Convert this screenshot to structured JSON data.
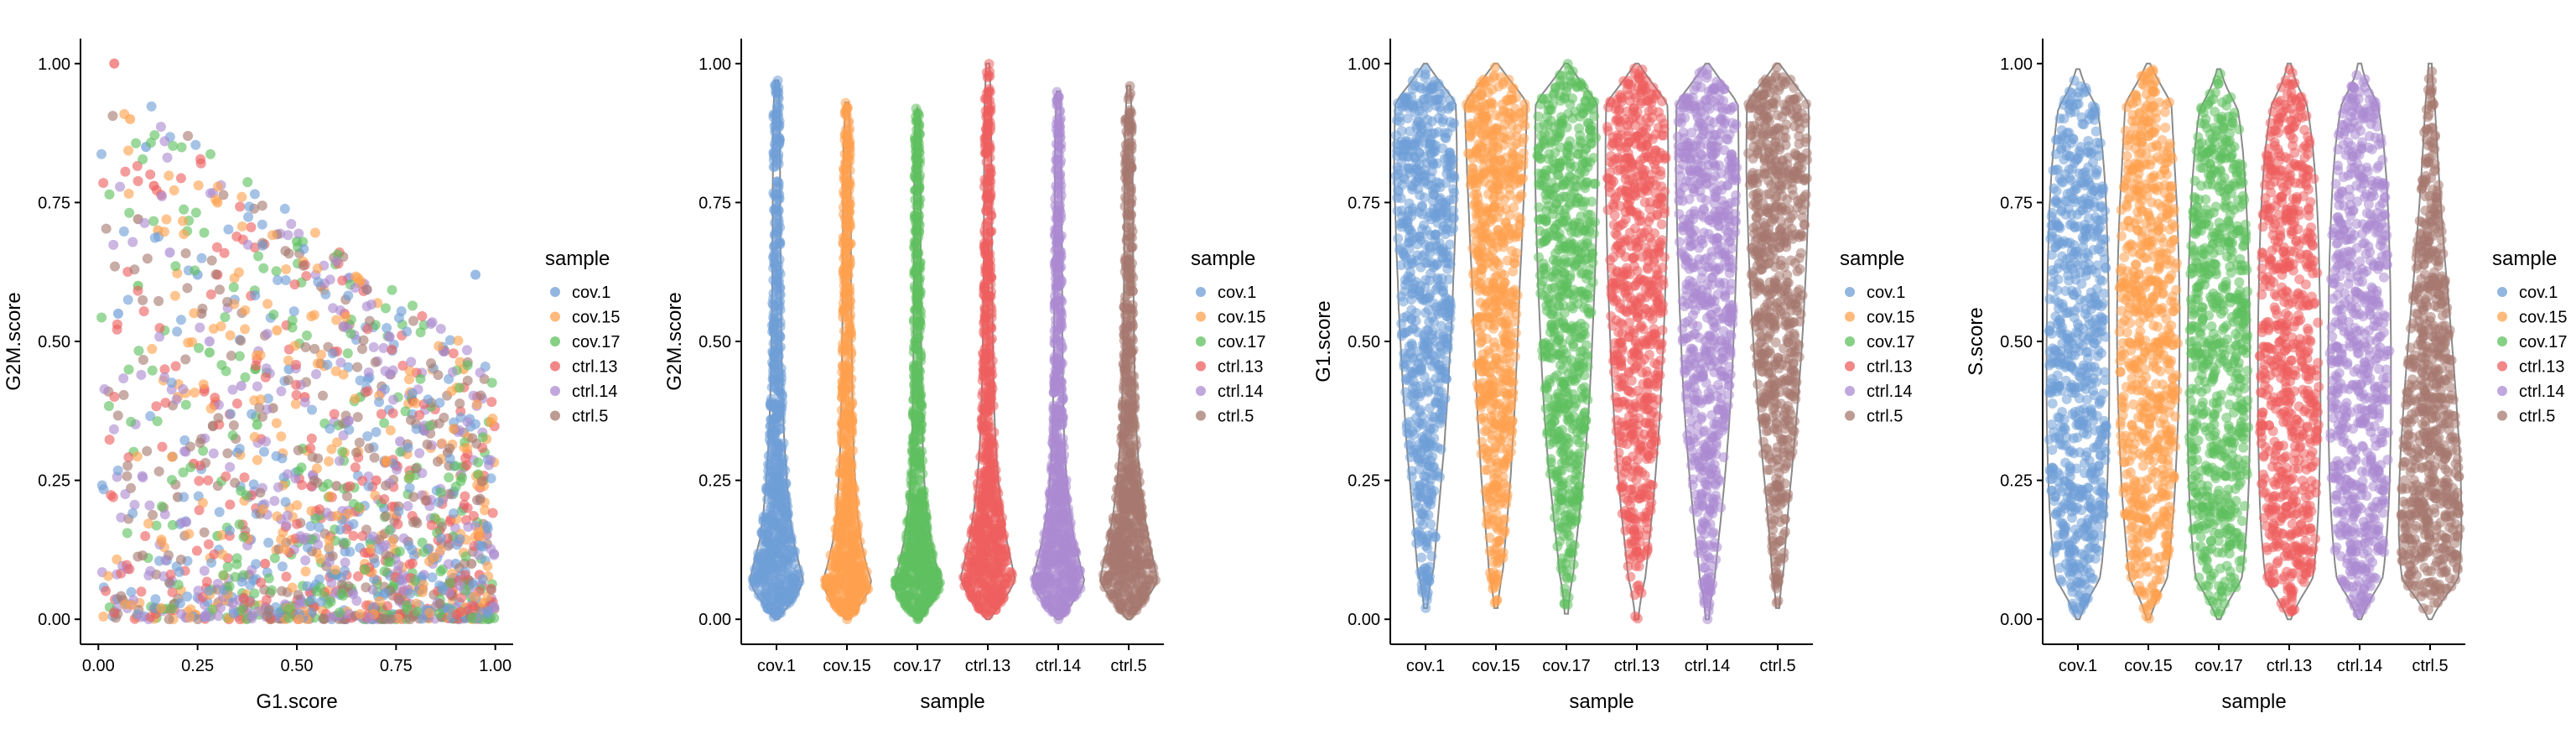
{
  "legend_title": "sample",
  "samples": [
    "cov.1",
    "cov.15",
    "cov.17",
    "ctrl.13",
    "ctrl.14",
    "ctrl.5"
  ],
  "colors": {
    "cov.1": "#6F9ED7",
    "cov.15": "#FFA14E",
    "cov.17": "#5EC05E",
    "ctrl.13": "#EE5F5F",
    "ctrl.14": "#AB8BD1",
    "ctrl.5": "#A6796F"
  },
  "chart_data": [
    {
      "type": "scatter",
      "xlabel": "G1.score",
      "ylabel": "G2M.score",
      "xlim": [
        0,
        1
      ],
      "ylim": [
        0,
        1
      ],
      "x_ticks": [
        "0.00",
        "0.25",
        "0.50",
        "0.75",
        "1.00"
      ],
      "y_ticks": [
        "0.00",
        "0.25",
        "0.50",
        "0.75",
        "1.00"
      ],
      "legend_title": "sample",
      "legend_entries": [
        "cov.1",
        "cov.15",
        "cov.17",
        "ctrl.13",
        "ctrl.14",
        "ctrl.5"
      ],
      "legend_position": "right",
      "grid": false,
      "series": [
        {
          "name": "cov.1",
          "points": [
            [
              0.12,
              0.85
            ],
            [
              0.25,
              0.62
            ],
            [
              0.48,
              0.45
            ],
            [
              0.72,
              0.2
            ],
            [
              0.9,
              0.1
            ],
            [
              0.35,
              0.3
            ],
            [
              0.6,
              0.08
            ],
            [
              0.82,
              0.34
            ],
            [
              0.05,
              0.55
            ],
            [
              0.95,
              0.62
            ]
          ]
        },
        {
          "name": "cov.15",
          "points": [
            [
              0.08,
              0.9
            ],
            [
              0.3,
              0.75
            ],
            [
              0.45,
              0.52
            ],
            [
              0.62,
              0.3
            ],
            [
              0.85,
              0.18
            ],
            [
              0.2,
              0.4
            ],
            [
              0.55,
              0.12
            ],
            [
              0.78,
              0.05
            ],
            [
              0.15,
              0.7
            ],
            [
              0.92,
              0.45
            ]
          ]
        },
        {
          "name": "cov.17",
          "points": [
            [
              0.1,
              0.6
            ],
            [
              0.28,
              0.48
            ],
            [
              0.4,
              0.35
            ],
            [
              0.58,
              0.22
            ],
            [
              0.75,
              0.12
            ],
            [
              0.88,
              0.06
            ],
            [
              0.5,
              0.68
            ],
            [
              0.3,
              0.15
            ],
            [
              0.66,
              0.4
            ],
            [
              0.97,
              0.25
            ]
          ]
        },
        {
          "name": "ctrl.13",
          "points": [
            [
              0.04,
              1.0
            ],
            [
              0.14,
              0.78
            ],
            [
              0.3,
              0.62
            ],
            [
              0.52,
              0.4
            ],
            [
              0.7,
              0.25
            ],
            [
              0.86,
              0.16
            ],
            [
              0.42,
              0.1
            ],
            [
              0.62,
              0.55
            ],
            [
              0.24,
              0.28
            ],
            [
              0.96,
              0.08
            ]
          ]
        },
        {
          "name": "ctrl.14",
          "points": [
            [
              0.18,
              0.66
            ],
            [
              0.36,
              0.42
            ],
            [
              0.54,
              0.26
            ],
            [
              0.7,
              0.14
            ],
            [
              0.82,
              0.08
            ],
            [
              0.92,
              0.2
            ],
            [
              0.46,
              0.18
            ],
            [
              0.64,
              0.05
            ],
            [
              0.28,
              0.5
            ],
            [
              0.76,
              0.32
            ]
          ]
        },
        {
          "name": "ctrl.5",
          "points": [
            [
              0.1,
              0.72
            ],
            [
              0.26,
              0.55
            ],
            [
              0.44,
              0.38
            ],
            [
              0.6,
              0.24
            ],
            [
              0.78,
              0.14
            ],
            [
              0.94,
              0.1
            ],
            [
              0.38,
              0.08
            ],
            [
              0.56,
              0.46
            ],
            [
              0.2,
              0.22
            ],
            [
              0.88,
              0.3
            ]
          ]
        }
      ]
    },
    {
      "type": "violin",
      "xlabel": "sample",
      "ylabel": "G2M.score",
      "ylim": [
        0,
        1
      ],
      "y_ticks": [
        "0.00",
        "0.25",
        "0.50",
        "0.75",
        "1.00"
      ],
      "categories": [
        "cov.1",
        "cov.15",
        "cov.17",
        "ctrl.13",
        "ctrl.14",
        "ctrl.5"
      ],
      "legend_title": "sample",
      "legend_entries": [
        "cov.1",
        "cov.15",
        "cov.17",
        "ctrl.13",
        "ctrl.14",
        "ctrl.5"
      ],
      "legend_position": "right",
      "series": [
        {
          "name": "cov.1",
          "min": 0.0,
          "max": 0.97,
          "median": 0.14,
          "density": [
            1.0,
            0.95,
            0.72,
            0.5,
            0.38,
            0.3,
            0.24,
            0.19,
            0.16,
            0.13,
            0.11,
            0.1,
            0.09,
            0.08,
            0.08,
            0.07,
            0.07,
            0.06,
            0.06,
            0.06,
            0.05
          ]
        },
        {
          "name": "cov.15",
          "min": 0.0,
          "max": 0.93,
          "median": 0.12,
          "density": [
            1.0,
            0.9,
            0.62,
            0.42,
            0.3,
            0.24,
            0.19,
            0.16,
            0.14,
            0.12,
            0.11,
            0.1,
            0.09,
            0.08,
            0.08,
            0.08,
            0.07,
            0.07,
            0.06,
            0.05,
            0.04
          ]
        },
        {
          "name": "cov.17",
          "min": 0.0,
          "max": 0.92,
          "median": 0.11,
          "density": [
            1.0,
            0.92,
            0.6,
            0.4,
            0.28,
            0.2,
            0.15,
            0.12,
            0.1,
            0.09,
            0.08,
            0.07,
            0.07,
            0.06,
            0.06,
            0.05,
            0.05,
            0.05,
            0.04,
            0.04,
            0.03
          ]
        },
        {
          "name": "ctrl.13",
          "min": 0.0,
          "max": 1.0,
          "median": 0.15,
          "density": [
            1.0,
            0.96,
            0.75,
            0.55,
            0.4,
            0.3,
            0.23,
            0.18,
            0.15,
            0.13,
            0.11,
            0.1,
            0.09,
            0.08,
            0.08,
            0.07,
            0.07,
            0.06,
            0.06,
            0.05,
            0.05
          ]
        },
        {
          "name": "ctrl.14",
          "min": 0.0,
          "max": 0.95,
          "median": 0.13,
          "density": [
            1.0,
            0.94,
            0.7,
            0.48,
            0.34,
            0.25,
            0.18,
            0.14,
            0.12,
            0.1,
            0.09,
            0.08,
            0.08,
            0.07,
            0.07,
            0.06,
            0.06,
            0.05,
            0.05,
            0.04,
            0.03
          ]
        },
        {
          "name": "ctrl.5",
          "min": 0.0,
          "max": 0.96,
          "median": 0.16,
          "density": [
            1.0,
            0.98,
            0.82,
            0.62,
            0.46,
            0.35,
            0.27,
            0.21,
            0.17,
            0.15,
            0.13,
            0.12,
            0.11,
            0.1,
            0.09,
            0.09,
            0.08,
            0.08,
            0.07,
            0.06,
            0.05
          ]
        }
      ]
    },
    {
      "type": "violin",
      "xlabel": "sample",
      "ylabel": "G1.score",
      "ylim": [
        0,
        1
      ],
      "y_ticks": [
        "0.00",
        "0.25",
        "0.50",
        "0.75",
        "1.00"
      ],
      "categories": [
        "cov.1",
        "cov.15",
        "cov.17",
        "ctrl.13",
        "ctrl.14",
        "ctrl.5"
      ],
      "legend_title": "sample",
      "legend_entries": [
        "cov.1",
        "cov.15",
        "cov.17",
        "ctrl.13",
        "ctrl.14",
        "ctrl.5"
      ],
      "legend_position": "right",
      "series": [
        {
          "name": "cov.1",
          "min": 0.02,
          "max": 1.0,
          "median": 0.72,
          "density": [
            0.1,
            0.18,
            0.26,
            0.34,
            0.42,
            0.5,
            0.58,
            0.64,
            0.7,
            0.75,
            0.8,
            0.85,
            0.88,
            0.92,
            0.95,
            0.98,
            1.0,
            1.0,
            0.98,
            0.95,
            0.85
          ]
        },
        {
          "name": "cov.15",
          "min": 0.02,
          "max": 1.0,
          "median": 0.6,
          "density": [
            0.12,
            0.16,
            0.22,
            0.3,
            0.38,
            0.45,
            0.5,
            0.56,
            0.6,
            0.64,
            0.68,
            0.72,
            0.75,
            0.8,
            0.84,
            0.88,
            0.92,
            0.95,
            0.98,
            1.0,
            0.95
          ]
        },
        {
          "name": "cov.17",
          "min": 0.01,
          "max": 1.0,
          "median": 0.7,
          "density": [
            0.08,
            0.14,
            0.22,
            0.32,
            0.42,
            0.52,
            0.6,
            0.67,
            0.73,
            0.78,
            0.82,
            0.86,
            0.9,
            0.93,
            0.96,
            0.98,
            1.0,
            1.0,
            0.99,
            0.97,
            0.9
          ]
        },
        {
          "name": "ctrl.13",
          "min": 0.0,
          "max": 1.0,
          "median": 0.68,
          "density": [
            0.1,
            0.18,
            0.28,
            0.38,
            0.48,
            0.56,
            0.63,
            0.7,
            0.75,
            0.8,
            0.84,
            0.88,
            0.91,
            0.94,
            0.96,
            0.98,
            1.0,
            1.0,
            0.99,
            0.96,
            0.9
          ]
        },
        {
          "name": "ctrl.14",
          "min": 0.0,
          "max": 1.0,
          "median": 0.7,
          "density": [
            0.08,
            0.15,
            0.24,
            0.34,
            0.44,
            0.53,
            0.61,
            0.68,
            0.74,
            0.79,
            0.83,
            0.87,
            0.9,
            0.93,
            0.96,
            0.98,
            1.0,
            1.0,
            0.99,
            0.97,
            0.92
          ]
        },
        {
          "name": "ctrl.5",
          "min": 0.02,
          "max": 1.0,
          "median": 0.75,
          "density": [
            0.08,
            0.12,
            0.18,
            0.25,
            0.33,
            0.42,
            0.5,
            0.58,
            0.65,
            0.72,
            0.78,
            0.83,
            0.88,
            0.92,
            0.95,
            0.98,
            1.0,
            1.0,
            0.99,
            0.98,
            0.95
          ]
        }
      ]
    },
    {
      "type": "violin",
      "xlabel": "sample",
      "ylabel": "S.score",
      "ylim": [
        0,
        1
      ],
      "y_ticks": [
        "0.00",
        "0.25",
        "0.50",
        "0.75",
        "1.00"
      ],
      "categories": [
        "cov.1",
        "cov.15",
        "cov.17",
        "ctrl.13",
        "ctrl.14",
        "ctrl.5"
      ],
      "legend_title": "sample",
      "legend_entries": [
        "cov.1",
        "cov.15",
        "cov.17",
        "ctrl.13",
        "ctrl.14",
        "ctrl.5"
      ],
      "legend_position": "right",
      "series": [
        {
          "name": "cov.1",
          "min": 0.0,
          "max": 0.99,
          "median": 0.5,
          "density": [
            0.45,
            0.62,
            0.75,
            0.84,
            0.9,
            0.94,
            0.97,
            0.99,
            1.0,
            1.0,
            1.0,
            0.99,
            0.98,
            0.96,
            0.93,
            0.9,
            0.85,
            0.78,
            0.68,
            0.55,
            0.35
          ]
        },
        {
          "name": "cov.15",
          "min": 0.0,
          "max": 1.0,
          "median": 0.55,
          "density": [
            0.35,
            0.52,
            0.64,
            0.72,
            0.8,
            0.86,
            0.9,
            0.94,
            0.97,
            0.99,
            1.0,
            1.0,
            0.99,
            0.97,
            0.94,
            0.9,
            0.85,
            0.8,
            0.75,
            0.7,
            0.6
          ]
        },
        {
          "name": "cov.17",
          "min": 0.0,
          "max": 0.99,
          "median": 0.5,
          "density": [
            0.5,
            0.66,
            0.78,
            0.86,
            0.92,
            0.96,
            0.98,
            1.0,
            1.0,
            1.0,
            0.99,
            0.98,
            0.97,
            0.95,
            0.92,
            0.88,
            0.83,
            0.76,
            0.66,
            0.52,
            0.32
          ]
        },
        {
          "name": "ctrl.13",
          "min": 0.0,
          "max": 1.0,
          "median": 0.5,
          "density": [
            0.5,
            0.68,
            0.8,
            0.88,
            0.93,
            0.96,
            0.98,
            1.0,
            1.0,
            1.0,
            1.0,
            0.99,
            0.97,
            0.95,
            0.92,
            0.88,
            0.82,
            0.74,
            0.62,
            0.46,
            0.25
          ]
        },
        {
          "name": "ctrl.14",
          "min": 0.0,
          "max": 1.0,
          "median": 0.52,
          "density": [
            0.48,
            0.66,
            0.78,
            0.86,
            0.92,
            0.96,
            0.98,
            1.0,
            1.0,
            1.0,
            1.0,
            0.99,
            0.98,
            0.96,
            0.93,
            0.89,
            0.84,
            0.76,
            0.64,
            0.48,
            0.22
          ]
        },
        {
          "name": "ctrl.5",
          "min": 0.0,
          "max": 1.0,
          "median": 0.38,
          "density": [
            0.6,
            0.84,
            0.95,
            1.0,
            1.0,
            0.98,
            0.94,
            0.88,
            0.82,
            0.75,
            0.68,
            0.6,
            0.52,
            0.44,
            0.37,
            0.3,
            0.24,
            0.18,
            0.13,
            0.08,
            0.04
          ]
        }
      ]
    }
  ]
}
